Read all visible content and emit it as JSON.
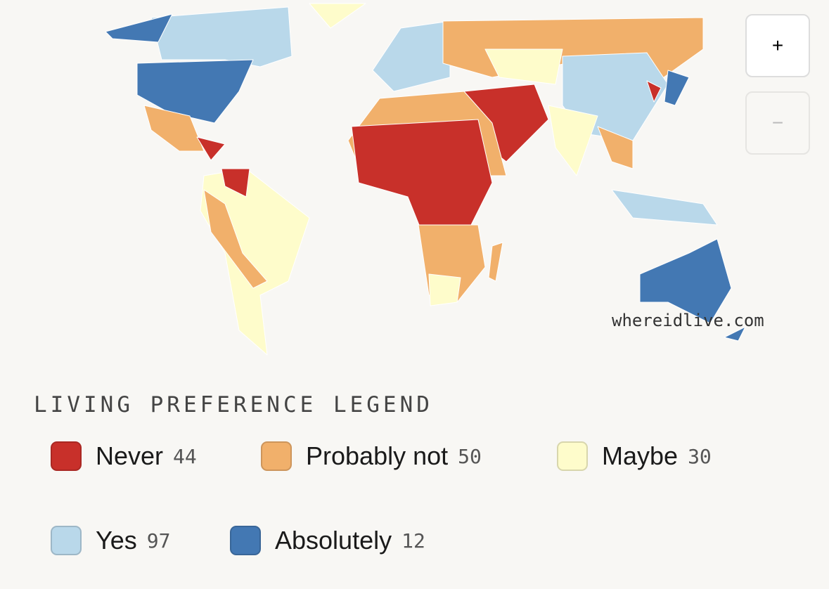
{
  "map": {
    "watermark": "whereidlive.com",
    "zoom_in": "+",
    "zoom_out": "−"
  },
  "legend": {
    "title": "LIVING PREFERENCE LEGEND",
    "items": [
      {
        "name": "Never",
        "count": 44,
        "color": "#c8302a"
      },
      {
        "name": "Probably not",
        "count": 50,
        "color": "#f1b06b"
      },
      {
        "name": "Maybe",
        "count": 30,
        "color": "#fefccb"
      },
      {
        "name": "Yes",
        "count": 97,
        "color": "#b9d8ea"
      },
      {
        "name": "Absolutely",
        "count": 12,
        "color": "#4378b3"
      }
    ]
  }
}
